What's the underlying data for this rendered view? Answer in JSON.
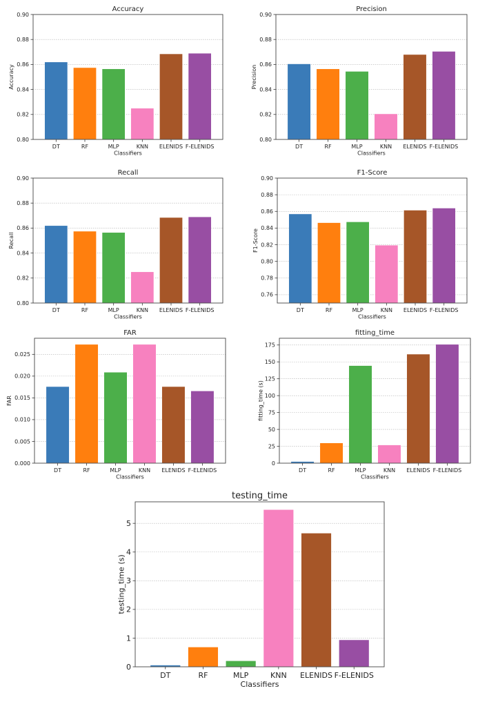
{
  "figure": {
    "categories": [
      "DT",
      "RF",
      "MLP",
      "KNN",
      "ELENIDS",
      "F-ELENIDS"
    ],
    "colors": [
      "#3a7bb8",
      "#ff7f0e",
      "#4caf4a",
      "#f781bf",
      "#a65628",
      "#984ea3"
    ]
  },
  "chart_data": [
    {
      "type": "bar",
      "title": "Accuracy",
      "xlabel": "Classifiers",
      "ylabel": "Accuracy",
      "categories": [
        "DT",
        "RF",
        "MLP",
        "KNN",
        "ELENIDS",
        "F-ELENIDS"
      ],
      "values": [
        0.862,
        0.8575,
        0.8565,
        0.825,
        0.8685,
        0.869
      ],
      "ylim": [
        0.8,
        0.9
      ],
      "yticks": [
        "0.80",
        "0.82",
        "0.84",
        "0.86",
        "0.88",
        "0.90"
      ],
      "grid": "y-dotted"
    },
    {
      "type": "bar",
      "title": "Precision",
      "xlabel": "Classifiers",
      "ylabel": "Precision",
      "categories": [
        "DT",
        "RF",
        "MLP",
        "KNN",
        "ELENIDS",
        "F-ELENIDS"
      ],
      "values": [
        0.8605,
        0.8565,
        0.8545,
        0.8205,
        0.868,
        0.8705
      ],
      "ylim": [
        0.8,
        0.9
      ],
      "yticks": [
        "0.80",
        "0.82",
        "0.84",
        "0.86",
        "0.88",
        "0.90"
      ],
      "grid": "y-dotted"
    },
    {
      "type": "bar",
      "title": "Recall",
      "xlabel": "Classifiers",
      "ylabel": "Recall",
      "categories": [
        "DT",
        "RF",
        "MLP",
        "KNN",
        "ELENIDS",
        "F-ELENIDS"
      ],
      "values": [
        0.862,
        0.8575,
        0.8565,
        0.825,
        0.8685,
        0.869
      ],
      "ylim": [
        0.8,
        0.9
      ],
      "yticks": [
        "0.80",
        "0.82",
        "0.84",
        "0.86",
        "0.88",
        "0.90"
      ],
      "grid": "y-dotted"
    },
    {
      "type": "bar",
      "title": "F1-Score",
      "xlabel": "Classifiers",
      "ylabel": "F1-Score",
      "categories": [
        "DT",
        "RF",
        "MLP",
        "KNN",
        "ELENIDS",
        "F-ELENIDS"
      ],
      "values": [
        0.857,
        0.8465,
        0.8475,
        0.8195,
        0.8615,
        0.864
      ],
      "ylim": [
        0.75,
        0.9
      ],
      "yticks": [
        "0.76",
        "0.78",
        "0.80",
        "0.82",
        "0.84",
        "0.86",
        "0.88",
        "0.90"
      ],
      "grid": "y-dotted"
    },
    {
      "type": "bar",
      "title": "FAR",
      "xlabel": "Classifiers",
      "ylabel": "FAR",
      "categories": [
        "DT",
        "RF",
        "MLP",
        "KNN",
        "ELENIDS",
        "F-ELENIDS"
      ],
      "values": [
        0.0176,
        0.0273,
        0.0209,
        0.0273,
        0.0176,
        0.0166
      ],
      "ylim": [
        0.0,
        0.0287
      ],
      "yticks": [
        "0.000",
        "0.005",
        "0.010",
        "0.015",
        "0.020",
        "0.025"
      ],
      "grid": "y-dotted"
    },
    {
      "type": "bar",
      "title": "fitting_time",
      "xlabel": "Classifiers",
      "ylabel": "fitting_time (s)",
      "categories": [
        "DT",
        "RF",
        "MLP",
        "KNN",
        "ELENIDS",
        "F-ELENIDS"
      ],
      "values": [
        2.5,
        30,
        144.5,
        27,
        161.5,
        176
      ],
      "ylim": [
        0,
        185
      ],
      "yticks": [
        "0",
        "25",
        "50",
        "75",
        "100",
        "125",
        "150",
        "175"
      ],
      "grid": "y-dotted"
    },
    {
      "type": "bar",
      "title": "testing_time",
      "xlabel": "Classifiers",
      "ylabel": "testing_time (s)",
      "categories": [
        "DT",
        "RF",
        "MLP",
        "KNN",
        "ELENIDS",
        "F-ELENIDS"
      ],
      "values": [
        0.06,
        0.69,
        0.21,
        5.48,
        4.66,
        0.94
      ],
      "ylim": [
        0,
        5.75
      ],
      "yticks": [
        "0",
        "1",
        "2",
        "3",
        "4",
        "5"
      ],
      "grid": "y-dotted"
    }
  ]
}
